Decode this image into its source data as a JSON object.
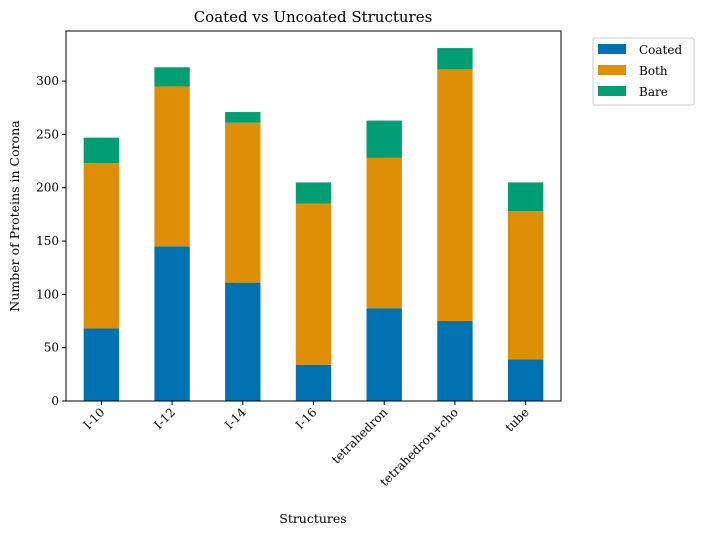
{
  "chart_data": {
    "type": "bar",
    "stacked": true,
    "title": "Coated vs Uncoated Structures",
    "xlabel": "Structures",
    "ylabel": "Number of Proteins in Corona",
    "categories": [
      "I-10",
      "I-12",
      "I-14",
      "I-16",
      "tetrahedron",
      "tetrahedron+cho",
      "tube"
    ],
    "series": [
      {
        "name": "Coated",
        "color": "#0072b2",
        "values": [
          68,
          145,
          111,
          34,
          87,
          75,
          39
        ]
      },
      {
        "name": "Both",
        "color": "#de8f05",
        "values": [
          155,
          150,
          150,
          151,
          141,
          236,
          139
        ]
      },
      {
        "name": "Bare",
        "color": "#029e73",
        "values": [
          24,
          18,
          10,
          20,
          35,
          20,
          27
        ]
      }
    ],
    "yticks": [
      0,
      50,
      100,
      150,
      200,
      250,
      300
    ],
    "ylim": [
      0,
      347
    ],
    "grid": false,
    "legend_position": "outside-top-right"
  }
}
